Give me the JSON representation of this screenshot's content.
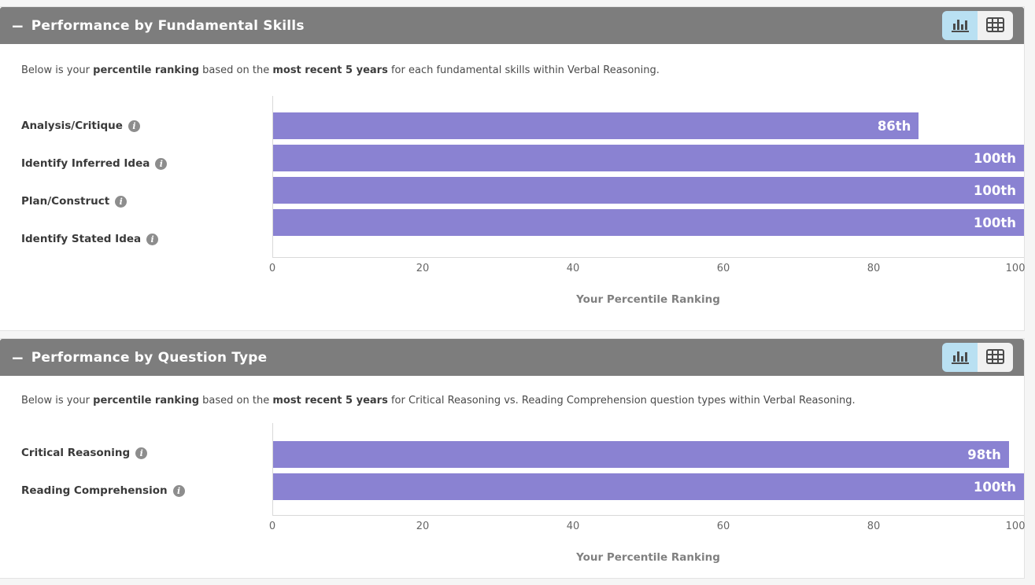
{
  "colors": {
    "bar": "#8A82D2",
    "header_bg": "#7d7d7d",
    "toggle_active_bg": "#b9e0f2",
    "toggle_inactive_bg": "#f1f1f1",
    "page_bg": "#f5f5f5"
  },
  "icons": {
    "collapse": "minus-icon",
    "chart_view": "bar-chart-icon",
    "table_view": "table-icon",
    "category_info": "info-icon"
  },
  "panels": [
    {
      "collapse_icon": "−",
      "title": "Performance by Fundamental Skills",
      "description_segments": [
        {
          "text": "Below is your ",
          "bold": false
        },
        {
          "text": "percentile ranking",
          "bold": true
        },
        {
          "text": " based on the ",
          "bold": false
        },
        {
          "text": "most recent 5 years",
          "bold": true
        },
        {
          "text": " for each fundamental skills within Verbal Reasoning.",
          "bold": false
        }
      ]
    },
    {
      "collapse_icon": "−",
      "title": "Performance by Question Type",
      "description_segments": [
        {
          "text": "Below is your ",
          "bold": false
        },
        {
          "text": "percentile ranking",
          "bold": true
        },
        {
          "text": " based on the ",
          "bold": false
        },
        {
          "text": "most recent 5 years",
          "bold": true
        },
        {
          "text": " for Critical Reasoning vs. Reading Comprehension question types within Verbal Reasoning.",
          "bold": false
        }
      ]
    }
  ],
  "chart_data": [
    {
      "type": "bar",
      "orientation": "horizontal",
      "title": "Performance by Fundamental Skills",
      "categories": [
        "Analysis/Critique",
        "Identify Inferred Idea",
        "Plan/Construct",
        "Identify Stated Idea"
      ],
      "values": [
        86,
        100,
        100,
        100
      ],
      "value_labels": [
        "86th",
        "100th",
        "100th",
        "100th"
      ],
      "xlabel": "Your Percentile Ranking",
      "xticks": [
        0,
        20,
        40,
        60,
        80,
        100
      ],
      "xlim": [
        0,
        100
      ],
      "bar_color": "#8A82D2",
      "grid": false,
      "legend": "none"
    },
    {
      "type": "bar",
      "orientation": "horizontal",
      "title": "Performance by Question Type",
      "categories": [
        "Critical Reasoning",
        "Reading Comprehension"
      ],
      "values": [
        98,
        100
      ],
      "value_labels": [
        "98th",
        "100th"
      ],
      "xlabel": "Your Percentile Ranking",
      "xticks": [
        0,
        20,
        40,
        60,
        80,
        100
      ],
      "xlim": [
        0,
        100
      ],
      "bar_color": "#8A82D2",
      "grid": false,
      "legend": "none"
    }
  ]
}
